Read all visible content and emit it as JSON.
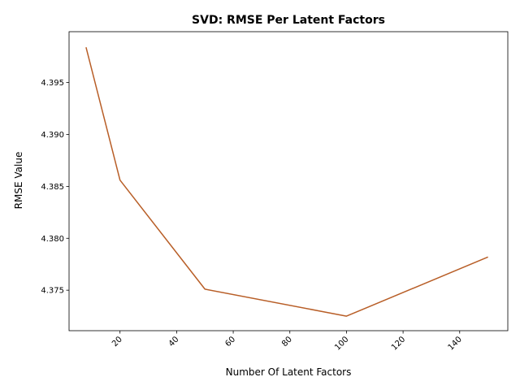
{
  "chart_data": {
    "type": "line",
    "title": "SVD: RMSE Per Latent Factors",
    "xlabel": "Number Of Latent Factors",
    "ylabel": "RMSE Value",
    "xlim": [
      2,
      157
    ],
    "ylim": [
      4.3711,
      4.3999
    ],
    "xticks": [
      20,
      40,
      60,
      80,
      100,
      120,
      140
    ],
    "yticks": [
      4.375,
      4.38,
      4.385,
      4.39,
      4.395
    ],
    "ytick_labels": [
      "4.375",
      "4.380",
      "4.385",
      "4.390",
      "4.395"
    ],
    "xtick_rotation": 45,
    "grid": false,
    "series": [
      {
        "color": "#b85e27",
        "x": [
          8,
          20,
          50,
          100,
          150
        ],
        "y": [
          4.3984,
          4.3856,
          4.3751,
          4.3725,
          4.3782
        ]
      }
    ]
  }
}
